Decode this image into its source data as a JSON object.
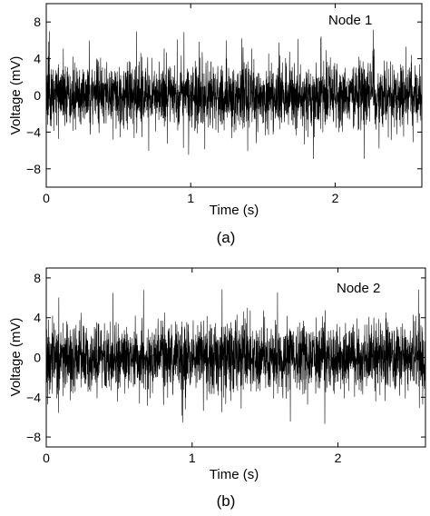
{
  "chart_data": [
    {
      "type": "line",
      "caption": "(a)",
      "annotation": "Node 1",
      "xlabel": "Time (s)",
      "ylabel": "Voltage (mV)",
      "xlim": [
        0,
        2.6
      ],
      "ylim": [
        -10,
        10
      ],
      "xticks": [
        0,
        1,
        2
      ],
      "yticks": [
        -8,
        -4,
        0,
        4,
        8
      ],
      "series": [
        {
          "signal": "random noise",
          "sample_count": 2600,
          "typical_amplitude": 2.2,
          "peak_amplitude": 7.2,
          "color": "#000000"
        }
      ]
    },
    {
      "type": "line",
      "caption": "(b)",
      "annotation": "Node 2",
      "xlabel": "Time (s)",
      "ylabel": "Voltage (mV)",
      "xlim": [
        0,
        2.6
      ],
      "ylim": [
        -9,
        9
      ],
      "xticks": [
        0,
        1,
        2
      ],
      "yticks": [
        -8,
        -4,
        0,
        4,
        8
      ],
      "series": [
        {
          "signal": "random noise",
          "sample_count": 2600,
          "typical_amplitude": 2.2,
          "peak_amplitude": 7.0,
          "color": "#000000"
        }
      ]
    }
  ]
}
